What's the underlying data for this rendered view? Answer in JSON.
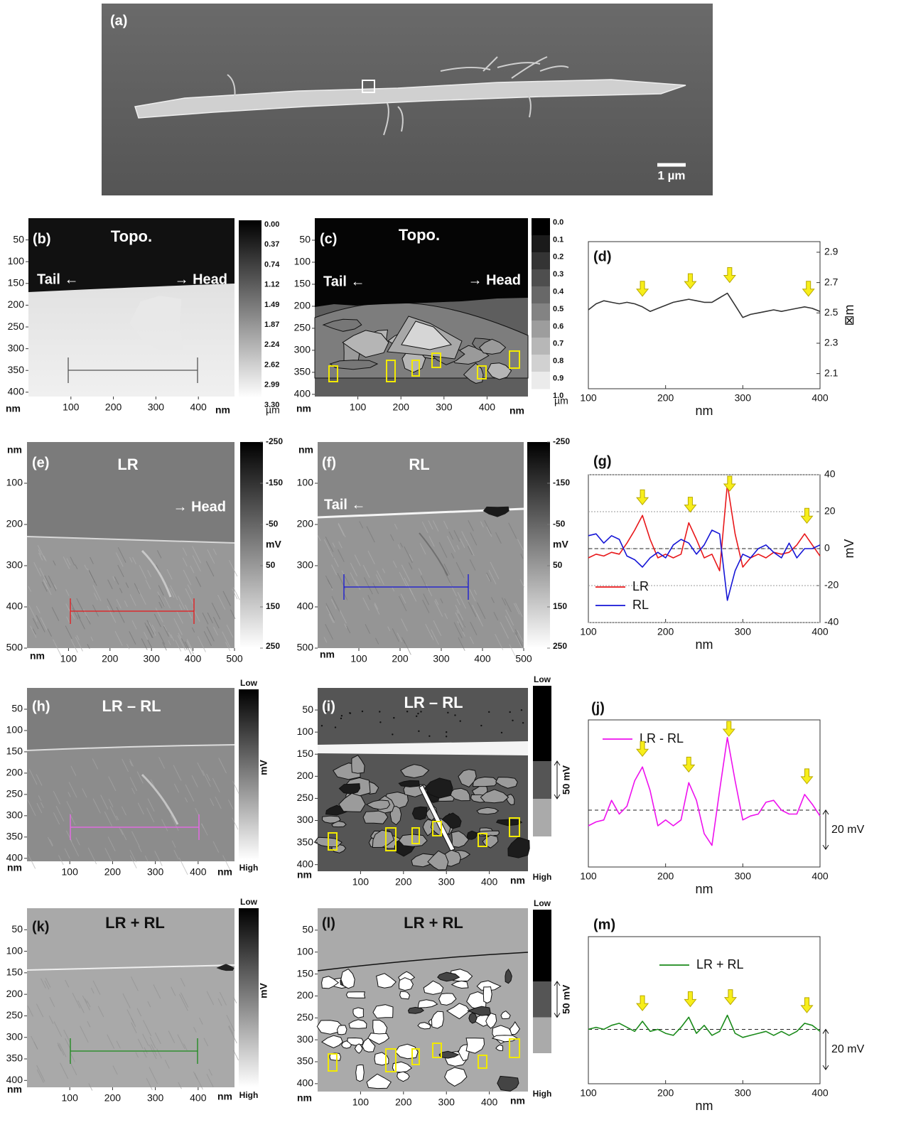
{
  "panels": {
    "a": {
      "label": "(a)",
      "scale_bar": "1 µm"
    },
    "b": {
      "label": "(b)",
      "title": "Topo.",
      "notes": [
        "Tail ←",
        "→ Head"
      ],
      "xlim": [
        0,
        485
      ],
      "ylim": [
        0,
        410
      ],
      "xticks": [
        100,
        200,
        300,
        400
      ],
      "yticks": [
        50,
        100,
        150,
        200,
        250,
        300,
        350,
        400
      ],
      "x_unit": "nm",
      "y_unit": "nm",
      "colorbar": {
        "labels": [
          "0.00",
          "0.37",
          "0.74",
          "1.12",
          "1.49",
          "1.87",
          "2.24",
          "2.62",
          "2.99",
          "3.30"
        ],
        "unit": "µm"
      }
    },
    "c": {
      "label": "(c)",
      "title": "Topo.",
      "notes": [
        "Tail ←",
        "→ Head"
      ],
      "xlim": [
        0,
        495
      ],
      "ylim": [
        0,
        405
      ],
      "xticks": [
        100,
        200,
        300,
        400
      ],
      "yticks": [
        50,
        100,
        150,
        200,
        250,
        300,
        350,
        400
      ],
      "x_unit": "nm",
      "y_unit": "nm",
      "colorbar": {
        "labels": [
          "0.0",
          "0.1",
          "0.2",
          "0.3",
          "0.4",
          "0.5",
          "0.6",
          "0.7",
          "0.8",
          "0.9",
          "1.0"
        ],
        "unit": "µm"
      }
    },
    "e": {
      "label": "(e)",
      "title": "LR",
      "notes": [
        "→ Head"
      ],
      "xlim": [
        0,
        500
      ],
      "ylim": [
        0,
        500
      ],
      "xticks": [
        100,
        200,
        300,
        400,
        500
      ],
      "yticks": [
        100,
        200,
        300,
        400,
        500
      ],
      "x_unit": "nm",
      "y_unit": "nm",
      "colorbar": {
        "lim": [
          -250,
          250
        ],
        "ticks": [
          -250,
          -150,
          -50,
          50,
          150,
          250
        ],
        "unit": "mV"
      }
    },
    "f": {
      "label": "(f)",
      "title": "RL",
      "notes": [
        "Tail ←"
      ],
      "xlim": [
        0,
        500
      ],
      "ylim": [
        0,
        500
      ],
      "xticks": [
        100,
        200,
        300,
        400,
        500
      ],
      "yticks": [
        100,
        200,
        300,
        400,
        500
      ],
      "x_unit": "nm",
      "y_unit": "nm",
      "colorbar": {
        "lim": [
          -250,
          250
        ],
        "ticks": [
          -250,
          -150,
          -50,
          50,
          150,
          250
        ],
        "unit": "mV"
      }
    },
    "h": {
      "label": "(h)",
      "title": "LR – RL",
      "notes": [],
      "xlim": [
        0,
        485
      ],
      "ylim": [
        0,
        407
      ],
      "xticks": [
        100,
        200,
        300,
        400
      ],
      "yticks": [
        50,
        100,
        150,
        200,
        250,
        300,
        350,
        400
      ],
      "x_unit": "nm",
      "y_unit": "nm",
      "colorbar": {
        "labels": [
          "Low",
          "High"
        ],
        "unit": "mV"
      }
    },
    "i": {
      "label": "(i)",
      "title": "LR – RL",
      "notes": [],
      "xlim": [
        0,
        490
      ],
      "ylim": [
        0,
        415
      ],
      "xticks": [
        100,
        200,
        300,
        400
      ],
      "yticks": [
        50,
        100,
        150,
        200,
        250,
        300,
        350,
        400
      ],
      "x_unit": "nm",
      "y_unit": "nm",
      "colorbar": {
        "labels": [
          "Low",
          "High"
        ],
        "scale": "50 mV"
      }
    },
    "k": {
      "label": "(k)",
      "title": "LR + RL",
      "notes": [],
      "xlim": [
        0,
        485
      ],
      "ylim": [
        0,
        416
      ],
      "xticks": [
        100,
        200,
        300,
        400
      ],
      "yticks": [
        50,
        100,
        150,
        200,
        250,
        300,
        350,
        400
      ],
      "x_unit": "nm",
      "y_unit": "nm",
      "colorbar": {
        "labels": [
          "Low",
          "High"
        ],
        "unit": "mV"
      }
    },
    "l": {
      "label": "(l)",
      "title": "LR + RL",
      "notes": [],
      "xlim": [
        0,
        490
      ],
      "ylim": [
        0,
        418
      ],
      "xticks": [
        100,
        200,
        300,
        400
      ],
      "yticks": [
        50,
        100,
        150,
        200,
        250,
        300,
        350,
        400
      ],
      "x_unit": "nm",
      "y_unit": "nm",
      "colorbar": {
        "labels": [
          "Low",
          "High"
        ],
        "scale": "50 mV"
      }
    }
  },
  "chart_data": [
    {
      "type": "line",
      "label": "(d)",
      "x": [
        100,
        110,
        120,
        130,
        140,
        150,
        160,
        170,
        180,
        190,
        200,
        210,
        220,
        230,
        240,
        250,
        260,
        270,
        280,
        290,
        300,
        310,
        320,
        330,
        340,
        350,
        360,
        370,
        380,
        390,
        400
      ],
      "series": [
        {
          "color": "#333333",
          "values": [
            2.52,
            2.56,
            2.58,
            2.57,
            2.56,
            2.57,
            2.56,
            2.54,
            2.51,
            2.53,
            2.55,
            2.57,
            2.58,
            2.59,
            2.58,
            2.57,
            2.57,
            2.6,
            2.63,
            2.55,
            2.47,
            2.49,
            2.5,
            2.51,
            2.52,
            2.51,
            2.52,
            2.53,
            2.54,
            2.53,
            2.51
          ]
        }
      ],
      "xlim": [
        100,
        400
      ],
      "ylim": [
        2.0,
        2.97
      ],
      "xticks": [
        100,
        200,
        300,
        400
      ],
      "yticks": [
        2.1,
        2.3,
        2.5,
        2.7,
        2.9
      ],
      "xlabel": "nm",
      "ylabel": "⊠m",
      "arrow_x": [
        170,
        232,
        283,
        385
      ]
    },
    {
      "type": "line",
      "label": "(g)",
      "x": [
        100,
        110,
        120,
        130,
        140,
        150,
        160,
        170,
        180,
        190,
        200,
        210,
        220,
        230,
        240,
        250,
        260,
        270,
        280,
        290,
        300,
        310,
        320,
        330,
        340,
        350,
        360,
        370,
        380,
        390,
        400
      ],
      "series": [
        {
          "name": "LR",
          "color": "#e8171a",
          "values": [
            -5,
            -3,
            -4,
            -2,
            -3,
            3,
            10,
            18,
            5,
            -5,
            -3,
            -5,
            -3,
            14,
            5,
            -5,
            -3,
            -12,
            35,
            8,
            -10,
            -5,
            -3,
            -5,
            -2,
            -3,
            -2,
            2,
            8,
            2,
            -4
          ]
        },
        {
          "name": "RL",
          "color": "#1515d6",
          "values": [
            7,
            8,
            3,
            7,
            5,
            -4,
            -6,
            -10,
            -5,
            -2,
            -5,
            2,
            5,
            3,
            -3,
            2,
            10,
            8,
            -28,
            -12,
            -3,
            -5,
            0,
            2,
            -2,
            -5,
            3,
            -5,
            0,
            0,
            2
          ]
        }
      ],
      "xlim": [
        100,
        400
      ],
      "ylim": [
        -40,
        40
      ],
      "xticks": [
        100,
        200,
        300,
        400
      ],
      "yticks": [
        -40,
        -20,
        0,
        20,
        40
      ],
      "grid": true,
      "baseline": 0,
      "xlabel": "nm",
      "ylabel": "mV",
      "arrow_x": [
        170,
        232,
        283,
        383
      ]
    },
    {
      "type": "line",
      "label": "(j)",
      "x": [
        100,
        110,
        120,
        130,
        140,
        150,
        160,
        170,
        180,
        190,
        200,
        210,
        220,
        230,
        240,
        250,
        260,
        270,
        280,
        290,
        300,
        310,
        320,
        330,
        340,
        350,
        360,
        370,
        380,
        390,
        400
      ],
      "series": [
        {
          "name": "LR - RL",
          "color": "#ee11ee",
          "values": [
            -8,
            -6,
            -5,
            5,
            -2,
            2,
            15,
            22,
            10,
            -8,
            -5,
            -8,
            -5,
            14,
            5,
            -12,
            -18,
            10,
            37,
            15,
            -5,
            -3,
            -2,
            4,
            5,
            0,
            -2,
            -2,
            8,
            3,
            -3
          ]
        }
      ],
      "xlim": [
        100,
        400
      ],
      "ylim": [
        -29,
        46
      ],
      "xticks": [
        100,
        200,
        300,
        400
      ],
      "baseline": 0,
      "xlabel": "nm",
      "scale_bar": {
        "value": 20,
        "label": "20 mV"
      },
      "arrow_x": [
        170,
        230,
        282,
        383
      ]
    },
    {
      "type": "line",
      "label": "(m)",
      "x": [
        100,
        110,
        120,
        130,
        140,
        150,
        160,
        170,
        180,
        190,
        200,
        210,
        220,
        230,
        240,
        250,
        260,
        270,
        280,
        290,
        300,
        310,
        320,
        330,
        340,
        350,
        360,
        370,
        380,
        390,
        400
      ],
      "series": [
        {
          "name": "LR + RL",
          "color": "#1a8a1a",
          "values": [
            0,
            1,
            0,
            2,
            3,
            1,
            -1,
            4,
            -1,
            0,
            -2,
            -3,
            1,
            6,
            -2,
            2,
            -3,
            -1,
            7,
            -2,
            -4,
            -3,
            -2,
            -1,
            -3,
            -1,
            -3,
            -1,
            3,
            2,
            -1
          ]
        }
      ],
      "xlim": [
        100,
        400
      ],
      "ylim": [
        -27,
        46
      ],
      "xticks": [
        100,
        200,
        300,
        400
      ],
      "baseline": 0,
      "xlabel": "nm",
      "scale_bar": {
        "value": 20,
        "label": "20 mV"
      },
      "arrow_x": [
        170,
        232,
        284,
        383
      ]
    }
  ]
}
